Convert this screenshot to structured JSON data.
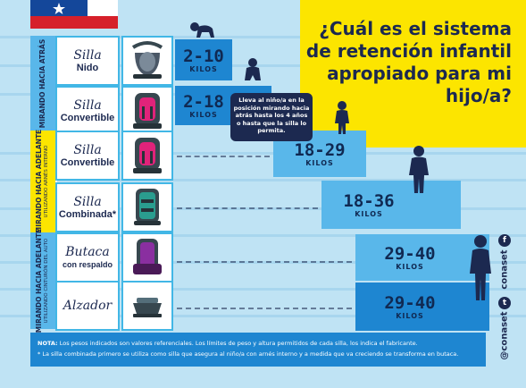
{
  "question": "¿Cuál es el sistema de retención infantil apropiado para mi hijo/a?",
  "sections": [
    {
      "label": "MIRANDO HACIA ATRÁS",
      "sublabel": ""
    },
    {
      "label": "MIRANDO HACIA ADELANTE",
      "sublabel": "UTILIZANDO ARNÉS INTERNO"
    },
    {
      "label": "MIRANDO HACIA ADELANTE",
      "sublabel": "UTILIZANDO CINTURÓN DEL AUTO"
    }
  ],
  "seats": [
    {
      "script": "Silla",
      "main": "Nido",
      "icon": "infant-carrier-icon",
      "color": "#4a5766"
    },
    {
      "script": "Silla",
      "main": "Convertible",
      "icon": "convertible-seat-icon",
      "color": "#e0237a"
    },
    {
      "script": "Silla",
      "main": "Convertible",
      "icon": "convertible-seat-icon",
      "color": "#e0237a"
    },
    {
      "script": "Silla",
      "main": "Combinada*",
      "icon": "combination-seat-icon",
      "color": "#2a9d8f"
    },
    {
      "script": "Butaca",
      "main": "con respaldo",
      "icon": "booster-backrest-icon",
      "color": "#8a2fa0"
    },
    {
      "script": "Alzador",
      "main": "",
      "icon": "booster-cushion-icon",
      "color": "#37474f"
    }
  ],
  "weights": [
    {
      "range": "2-10",
      "unit": "KILOS"
    },
    {
      "range": "2-18",
      "unit": "KILOS"
    },
    {
      "range": "18-29",
      "unit": "KILOS"
    },
    {
      "range": "18-36",
      "unit": "KILOS"
    },
    {
      "range": "29-40",
      "unit": "KILOS"
    },
    {
      "range": "29-40",
      "unit": "KILOS"
    }
  ],
  "note": "Lleva al niño/a en la posición mirando hacia atrás hasta los 4 años o hasta que la silla lo permita.",
  "social": {
    "facebook": "conaset",
    "twitter": "@conaset"
  },
  "footer": {
    "note_label": "NOTA:",
    "note_text": "Los pesos indicados son valores referenciales. Los límites de peso y altura permitidos de cada silla, los indica el fabricante.",
    "asterisk_text": "* La silla combinada primero se utiliza como silla que asegura al niño/a con arnés interno y a medida que va creciendo se transforma en butaca."
  },
  "colors": {
    "navy": "#1c2950",
    "blue": "#1e86d1",
    "light_blue": "#59b7ea",
    "yellow": "#fce500",
    "background": "#bfe3f4"
  }
}
